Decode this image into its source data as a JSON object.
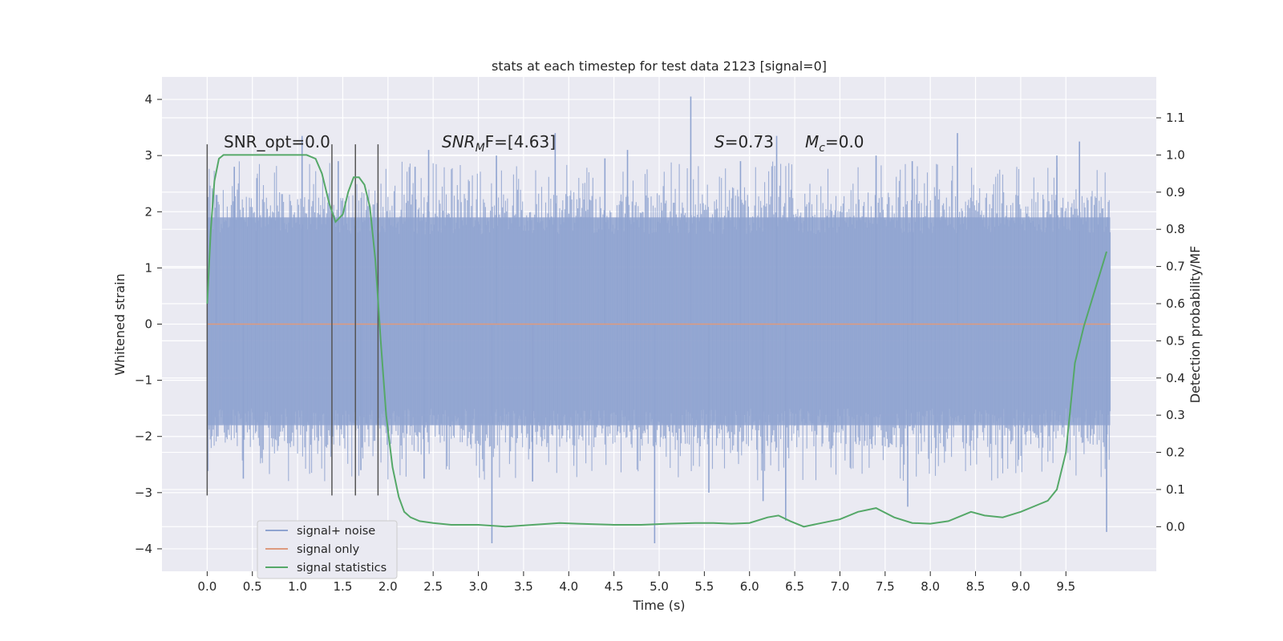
{
  "chart_data": {
    "type": "line",
    "title": "stats at each timestep for test data 2123 [signal=0]",
    "xlabel": "Time (s)",
    "ylabel": "Whitened strain",
    "y2label": "Detection probability/MF",
    "xlim": [
      -0.5,
      10.5
    ],
    "ylim": [
      -4.4,
      4.4
    ],
    "y2lim": [
      -0.12,
      1.21
    ],
    "x_ticks": [
      "0.0",
      "0.5",
      "1.0",
      "1.5",
      "2.0",
      "2.5",
      "3.0",
      "3.5",
      "4.0",
      "4.5",
      "5.0",
      "5.5",
      "6.0",
      "6.5",
      "7.0",
      "7.5",
      "8.0",
      "8.5",
      "9.0",
      "9.5"
    ],
    "y_ticks": [
      "4",
      "3",
      "2",
      "1",
      "0",
      "−1",
      "−2",
      "−3",
      "−4"
    ],
    "y2_ticks": [
      "1.1",
      "1.0",
      "0.9",
      "0.8",
      "0.7",
      "0.6",
      "0.5",
      "0.4",
      "0.3",
      "0.2",
      "0.1",
      "0.0"
    ],
    "grid": true,
    "legend_position": "lower-left",
    "annotations": {
      "snr_opt": "SNR_opt=0.0",
      "snr_mf_name": "SNR",
      "snr_mf_sub": "M",
      "snr_mf_value": "F=[4.63]",
      "s_name": "S",
      "s_value": "=0.73",
      "mc_name": "M",
      "mc_sub": "c",
      "mc_value": "=0.0"
    },
    "vertical_markers": [
      0.0,
      1.38,
      1.64,
      1.89
    ],
    "series": [
      {
        "name": "signal+ noise",
        "color": "#8fa3d0",
        "description_values": {
          "x_range": [
            0.0,
            9.99
          ],
          "band_typical": [
            -1.8,
            1.9
          ],
          "spike_max": 4.05,
          "spike_min": -3.9,
          "spikes": [
            [
              0.1,
              2.3
            ],
            [
              0.3,
              2.8
            ],
            [
              0.55,
              2.6
            ],
            [
              1.05,
              3.35
            ],
            [
              1.45,
              2.9
            ],
            [
              2.3,
              2.8
            ],
            [
              2.45,
              3.1
            ],
            [
              3.2,
              3.0
            ],
            [
              3.85,
              3.4
            ],
            [
              4.4,
              2.95
            ],
            [
              4.65,
              3.1
            ],
            [
              5.35,
              4.05
            ],
            [
              5.9,
              2.9
            ],
            [
              6.3,
              3.35
            ],
            [
              7.4,
              3.0
            ],
            [
              7.8,
              2.9
            ],
            [
              8.3,
              3.4
            ],
            [
              9.4,
              3.0
            ],
            [
              9.65,
              3.25
            ],
            [
              3.15,
              -3.9
            ],
            [
              4.95,
              -3.9
            ],
            [
              6.15,
              -3.15
            ],
            [
              6.4,
              -3.5
            ],
            [
              7.75,
              -3.25
            ],
            [
              9.95,
              -3.7
            ],
            [
              0.4,
              -2.75
            ],
            [
              1.7,
              -2.6
            ],
            [
              2.4,
              -2.75
            ],
            [
              3.6,
              -2.8
            ],
            [
              5.55,
              -3.0
            ]
          ]
        }
      },
      {
        "name": "signal only",
        "color": "#dd9a7e",
        "x": [
          0.0,
          9.99
        ],
        "y": [
          0.0,
          0.0
        ]
      },
      {
        "name": "signal statistics",
        "color": "#55a868",
        "axis": "right",
        "x": [
          0.0,
          0.04,
          0.08,
          0.13,
          0.18,
          0.25,
          0.4,
          0.6,
          0.8,
          1.0,
          1.1,
          1.2,
          1.27,
          1.35,
          1.42,
          1.5,
          1.56,
          1.62,
          1.68,
          1.74,
          1.8,
          1.86,
          1.92,
          1.98,
          2.05,
          2.12,
          2.18,
          2.25,
          2.35,
          2.5,
          2.7,
          3.0,
          3.3,
          3.6,
          3.9,
          4.1,
          4.5,
          4.8,
          5.1,
          5.4,
          5.6,
          5.8,
          6.0,
          6.2,
          6.32,
          6.45,
          6.6,
          6.8,
          7.0,
          7.2,
          7.4,
          7.6,
          7.8,
          8.0,
          8.2,
          8.45,
          8.6,
          8.8,
          9.0,
          9.2,
          9.3,
          9.4,
          9.5,
          9.6,
          9.7,
          9.8,
          9.9,
          9.95
        ],
        "y": [
          0.6,
          0.8,
          0.93,
          0.99,
          1.0,
          1.0,
          1.0,
          1.0,
          1.0,
          1.0,
          1.0,
          0.99,
          0.95,
          0.87,
          0.82,
          0.84,
          0.9,
          0.94,
          0.94,
          0.92,
          0.86,
          0.72,
          0.5,
          0.3,
          0.16,
          0.08,
          0.04,
          0.025,
          0.015,
          0.01,
          0.005,
          0.005,
          0.0,
          0.005,
          0.01,
          0.008,
          0.005,
          0.005,
          0.008,
          0.01,
          0.01,
          0.008,
          0.01,
          0.025,
          0.03,
          0.015,
          0.0,
          0.01,
          0.02,
          0.04,
          0.05,
          0.025,
          0.01,
          0.008,
          0.015,
          0.04,
          0.03,
          0.025,
          0.04,
          0.06,
          0.07,
          0.1,
          0.2,
          0.44,
          0.54,
          0.62,
          0.7,
          0.74
        ]
      }
    ]
  }
}
